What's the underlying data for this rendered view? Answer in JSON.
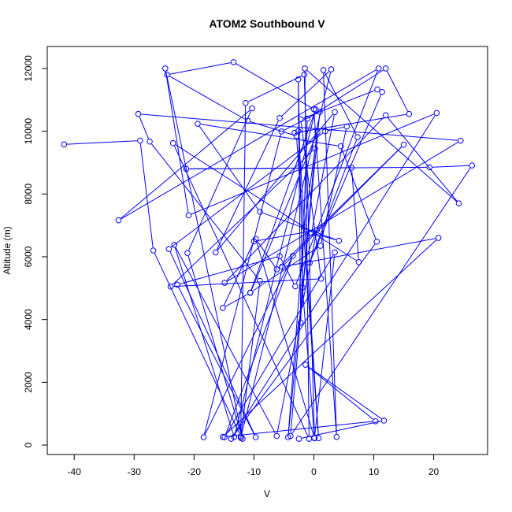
{
  "chart_data": {
    "type": "line",
    "title": "ATOM2 Southbound V",
    "xlabel": "V",
    "ylabel": "Altitude (m)",
    "xlim": [
      -44.5,
      29.0
    ],
    "ylim": [
      -300,
      12700
    ],
    "x_ticks": [
      -40,
      -30,
      -20,
      -10,
      0,
      10,
      20
    ],
    "y_ticks": [
      0,
      2000,
      4000,
      6000,
      8000,
      10000,
      12000
    ],
    "x_tick_labels": [
      "-40",
      "-30",
      "-20",
      "-10",
      "0",
      "10",
      "20"
    ],
    "y_tick_labels": [
      "0",
      "2000",
      "4000",
      "6000",
      "8000",
      "10000",
      "12000"
    ],
    "grid": false,
    "legend": "none",
    "series_color": "#0000ff",
    "series": [
      {
        "x": [
          -41.7,
          -29.0,
          -26.8,
          -12.2,
          -11.4,
          -1.6,
          0.1,
          -1.9,
          -2.6,
          -2.2,
          -1.1,
          12.0,
          15.9,
          -3.2,
          -2.6,
          0.8,
          -2.9,
          -11.0,
          -24.5,
          -13.4,
          0.0,
          3.8,
          1.6,
          7.3,
          -0.7,
          11.4,
          10.6,
          -2.2,
          1.2,
          -23.9,
          0.2,
          -3.9,
          26.4,
          19.3,
          -21.3,
          6.3,
          7.5,
          -23.5,
          -0.8,
          -1.5,
          24.2,
          12.0,
          -14.9,
          24.5,
          -29.3,
          -27.4,
          -9.0,
          -12.2,
          2.9,
          -5.7,
          -16.4,
          3.5,
          -0.4,
          4.2,
          -9.0,
          -19.4,
          4.5,
          10.5,
          -13.8,
          20.5,
          -20.9,
          -24.8,
          -11.9,
          -21.1,
          -10.3,
          -32.6,
          10.8,
          -3.1,
          -5.7,
          -22.8,
          -9.7,
          -24.2,
          1.9,
          5.5,
          1.1,
          -10.6,
          0.3,
          -13.3,
          -23.3,
          -6.2,
          0.5,
          -10.0,
          -15.2,
          -10.6,
          0.6,
          -1.6,
          -4.3,
          1.0,
          -5.4,
          -18.4,
          -3.5,
          -14.9,
          3.5,
          0.1,
          -9.7,
          -6.2,
          15.0,
          -5.3,
          20.8,
          -15.2,
          10.3,
          -1.4,
          11.7,
          -2.5
        ],
        "y": [
          9580,
          9700,
          6200,
          280,
          10900,
          11800,
          230,
          5020,
          11650,
          3900,
          10400,
          12000,
          10550,
          9950,
          10000,
          220,
          9850,
          10330,
          11800,
          12200,
          10700,
          260,
          11950,
          9810,
          5810,
          11250,
          11330,
          10380,
          5300,
          5050,
          9450,
          290,
          8910,
          8850,
          8800,
          8840,
          5830,
          9620,
          200,
          12000,
          7700,
          10510,
          5170,
          9700,
          10550,
          9670,
          5230,
          230,
          11970,
          10420,
          6140,
          10610,
          6760,
          6510,
          7430,
          10240,
          9520,
          6480,
          200,
          10580,
          7320,
          12000,
          200,
          6120,
          10730,
          7160,
          12000,
          5060,
          6020,
          5110,
          250,
          6250,
          10000,
          10150,
          6350,
          4860,
          10690,
          260,
          6380,
          290,
          6850,
          6490,
          4370,
          4850,
          9970,
          6950,
          250,
          10620,
          9990,
          250,
          6030,
          250,
          6140,
          220,
          6570,
          5600,
          9570,
          5680,
          6600,
          260,
          760,
          2560,
          780,
          200
        ]
      }
    ]
  }
}
